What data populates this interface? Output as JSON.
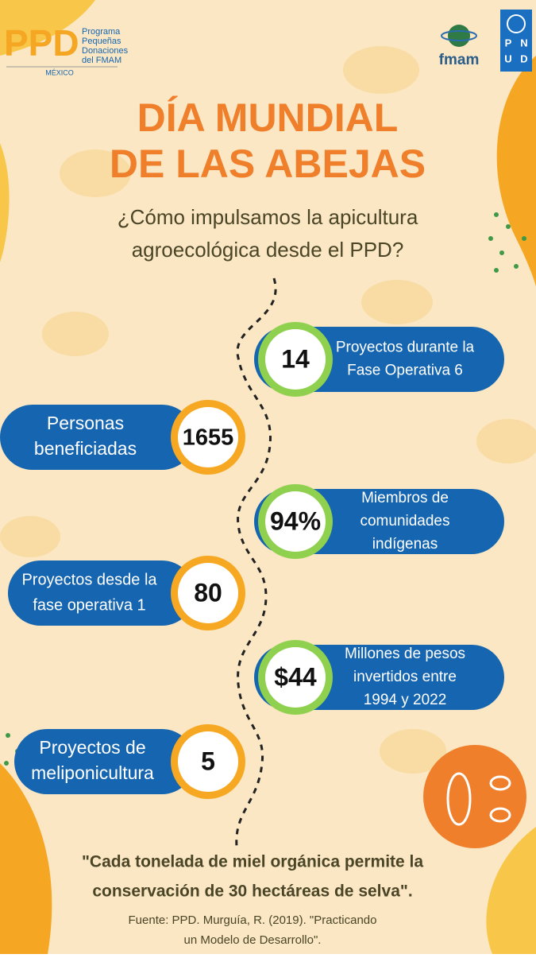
{
  "header": {
    "logo_ppd": "PPD",
    "logo_ppd_text": [
      "Programa",
      "Pequeñas",
      "Donaciones",
      "del FMAM"
    ],
    "logo_ppd_country": "MÉXICO",
    "logo_fmam": "fmam",
    "logo_pnud": [
      "P",
      "N",
      "U",
      "D"
    ]
  },
  "title": [
    "DÍA MUNDIAL",
    "DE LAS ABEJAS"
  ],
  "subtitle": [
    "¿Cómo impulsamos la apicultura",
    "agroecológica desde el PPD?"
  ],
  "stats": [
    {
      "value": "14",
      "label": [
        "Proyectos durante la",
        "Fase Operativa 6"
      ]
    },
    {
      "value": "1655",
      "label": [
        "Personas",
        "beneficiadas"
      ]
    },
    {
      "value": "94%",
      "label": [
        "Miembros de",
        "comunidades",
        "indígenas"
      ]
    },
    {
      "value": "80",
      "label": [
        "Proyectos desde la",
        "fase operativa 1"
      ]
    },
    {
      "value": "$44",
      "label": [
        "Millones de pesos",
        "invertidos entre",
        "1994 y 2022"
      ]
    },
    {
      "value": "5",
      "label": [
        "Proyectos de",
        "meliponicultura"
      ]
    }
  ],
  "quote": [
    "\"Cada tonelada de miel orgánica permite la",
    "conservación de 30 hectáreas de selva\"."
  ],
  "source": [
    "Fuente: PPD. Murguía, R. (2019). \"Practicando",
    "un Modelo de Desarrollo\"."
  ]
}
